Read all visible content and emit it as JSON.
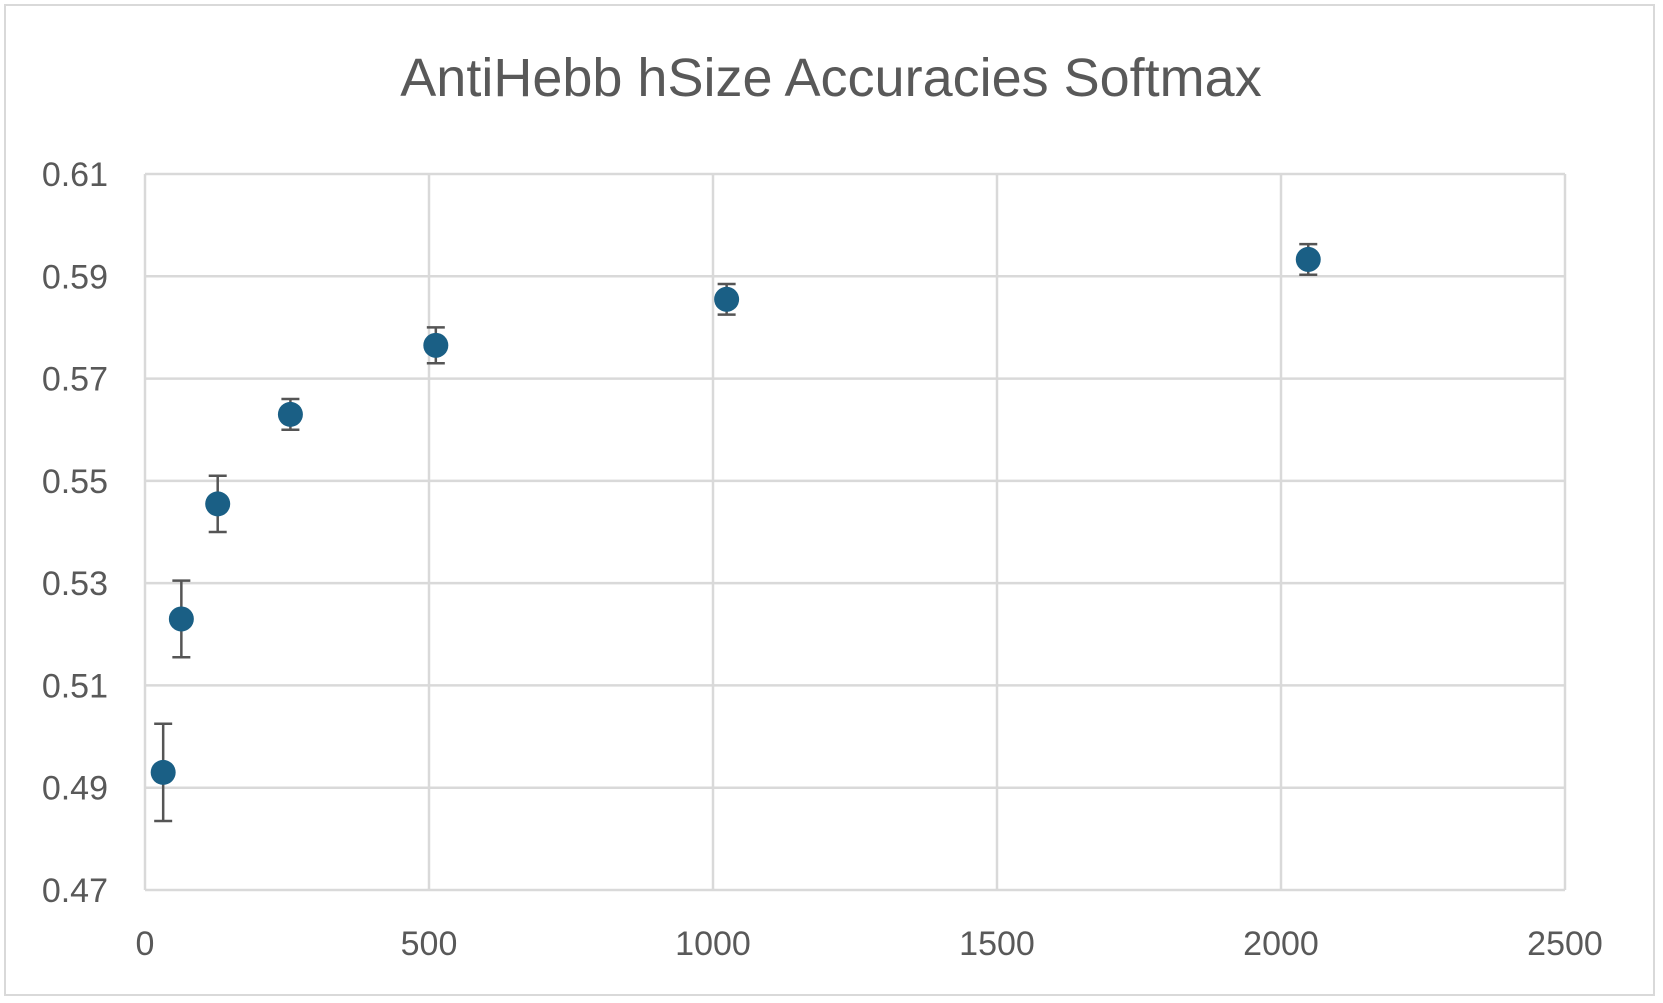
{
  "chart_data": {
    "type": "scatter",
    "title": "AntiHebb hSize Accuracies Softmax",
    "xlabel": "",
    "ylabel": "",
    "xlim": [
      0,
      2500
    ],
    "ylim": [
      0.47,
      0.61
    ],
    "x_ticks": [
      "0",
      "500",
      "1000",
      "1500",
      "2000",
      "2500"
    ],
    "y_ticks": [
      "0.61",
      "0.59",
      "0.57",
      "0.55",
      "0.53",
      "0.51",
      "0.49",
      "0.47"
    ],
    "grid": true,
    "legend": "none",
    "marker_color": "#1a5f85",
    "error_bar_color": "#555555",
    "series": [
      {
        "points": [
          {
            "x": 32,
            "y": 0.493,
            "err": 0.0095
          },
          {
            "x": 64,
            "y": 0.523,
            "err": 0.0075
          },
          {
            "x": 128,
            "y": 0.5455,
            "err": 0.0055
          },
          {
            "x": 256,
            "y": 0.563,
            "err": 0.003
          },
          {
            "x": 512,
            "y": 0.5765,
            "err": 0.0035
          },
          {
            "x": 1024,
            "y": 0.5855,
            "err": 0.003
          },
          {
            "x": 2048,
            "y": 0.5933,
            "err": 0.003
          }
        ]
      }
    ]
  }
}
